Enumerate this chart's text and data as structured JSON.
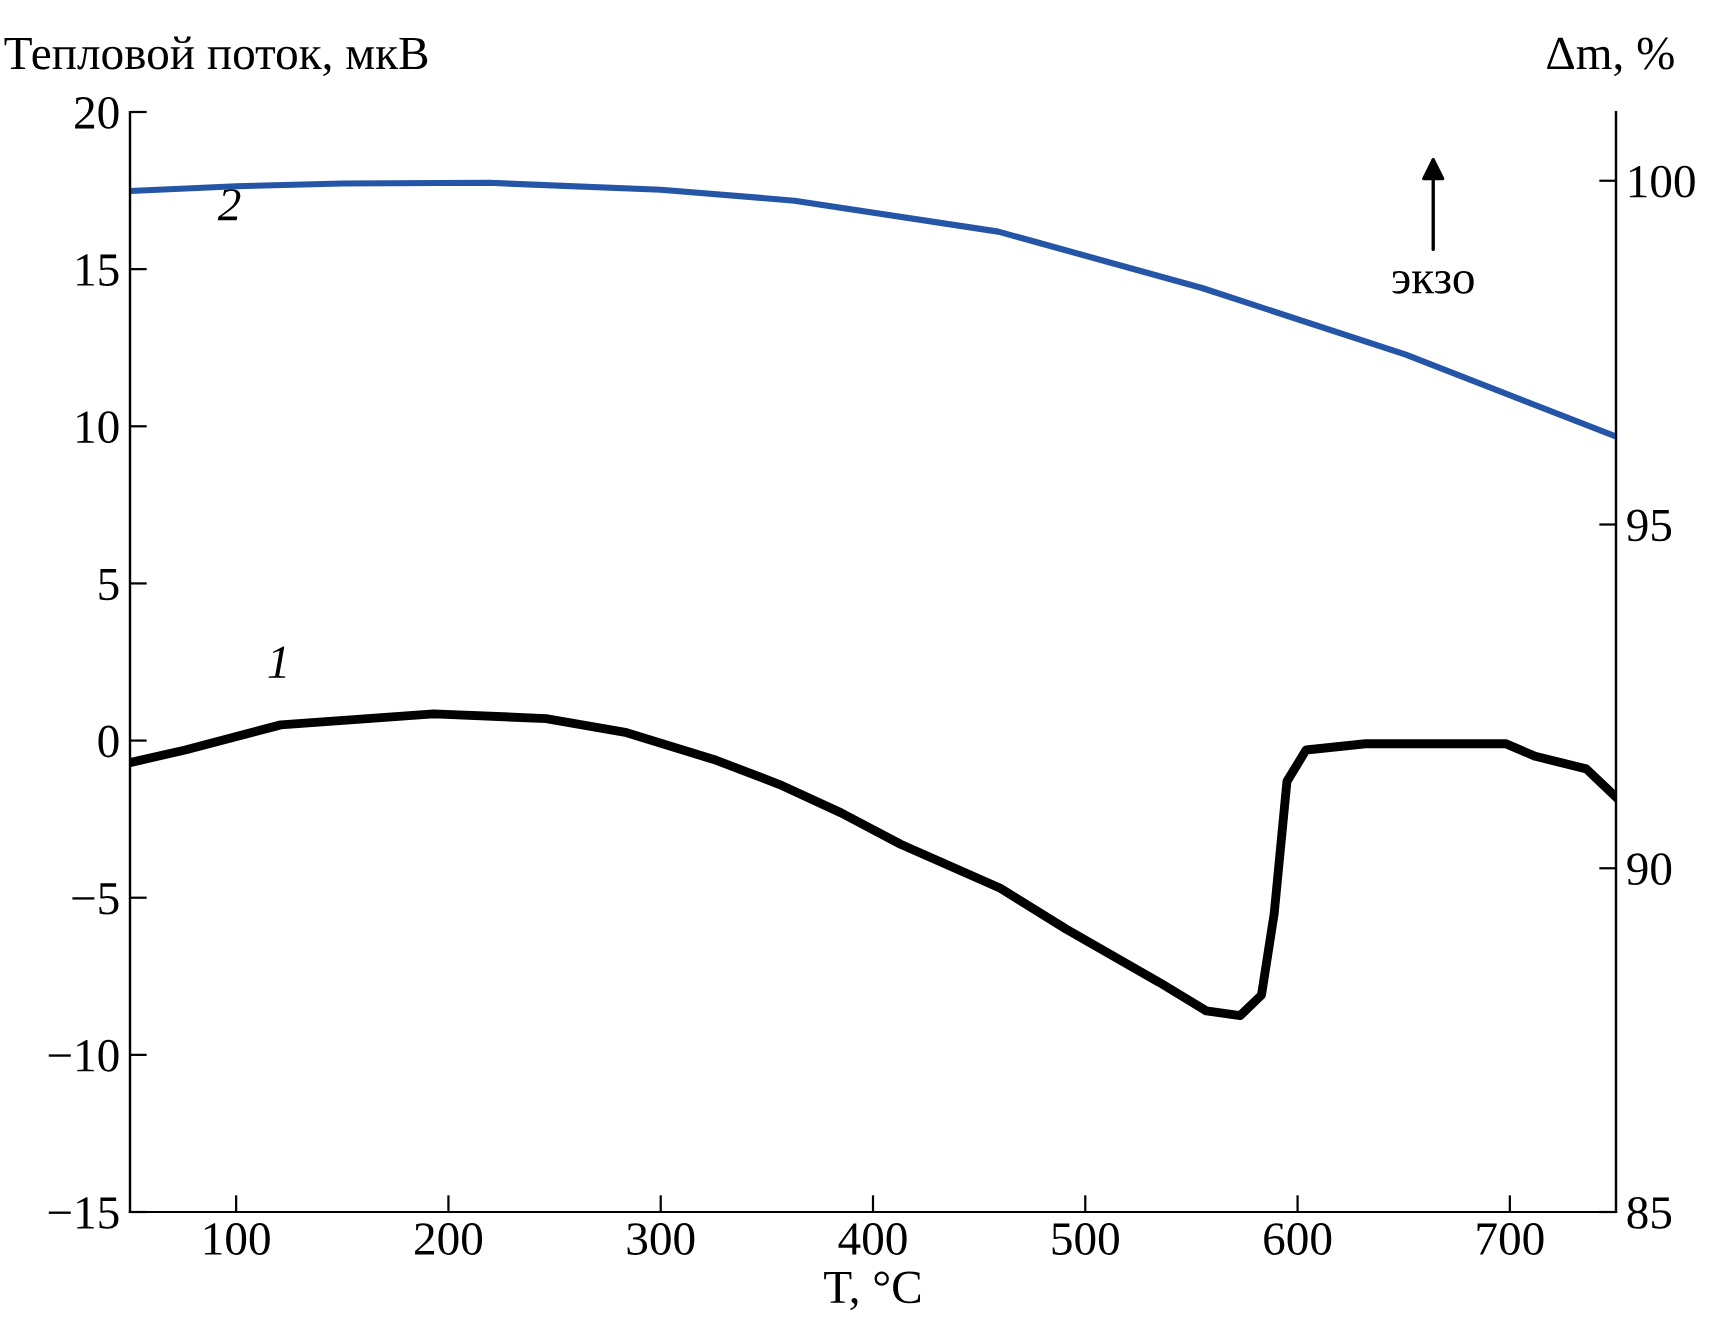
{
  "chart_data": {
    "type": "line",
    "xlabel": "T, °C",
    "ylabel": "Тепловой поток, мкВ",
    "y2label": "Δm, %",
    "xlim": [
      50,
      750
    ],
    "xticks": [
      100,
      200,
      300,
      400,
      500,
      600,
      700
    ],
    "ylim": [
      -15,
      20
    ],
    "yticks": [
      -15,
      -10,
      -5,
      0,
      5,
      10,
      15,
      20
    ],
    "y2lim": [
      85,
      101
    ],
    "y2ticks": [
      85,
      90,
      95,
      100
    ],
    "grid": false,
    "legend": false,
    "marker": "none",
    "line_style": "solid",
    "series": [
      {
        "axis": "y",
        "color": "#000000",
        "x": [
          50,
          76,
          121,
          193,
          246,
          284,
          325,
          356,
          385,
          413,
          460,
          491,
          535,
          557,
          573,
          583,
          589,
          595,
          604,
          632,
          680,
          698,
          712,
          736,
          750
        ],
        "values": [
          -0.7,
          -0.3,
          0.5,
          0.85,
          0.7,
          0.25,
          -0.6,
          -1.4,
          -2.3,
          -3.3,
          -4.7,
          -6.0,
          -7.7,
          -8.6,
          -8.75,
          -8.1,
          -5.5,
          -1.3,
          -0.3,
          -0.1,
          -0.1,
          -0.1,
          -0.5,
          -0.9,
          -1.8
        ]
      },
      {
        "axis": "y2",
        "color": "#2455a6",
        "x": [
          50,
          100,
          150,
          219,
          300,
          363,
          459,
          555,
          651,
          750
        ],
        "values": [
          99.85,
          99.92,
          99.96,
          99.97,
          99.87,
          99.71,
          99.26,
          98.44,
          97.47,
          96.28
        ]
      }
    ],
    "annotations": [
      "1",
      "2",
      "экзо"
    ]
  }
}
